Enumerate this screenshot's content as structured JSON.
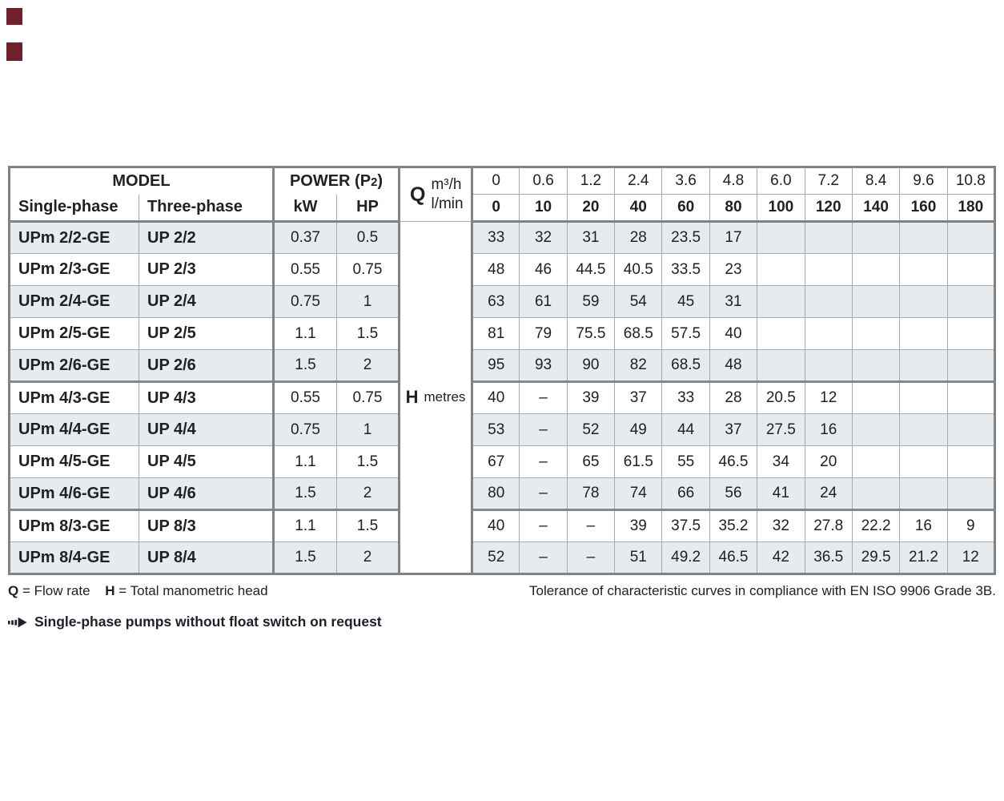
{
  "page": {
    "edge_tab_color": "#701f2b",
    "shade_color": "#e7ebed"
  },
  "table": {
    "header": {
      "model_label": "MODEL",
      "single_phase_label": "Single-phase",
      "three_phase_label": "Three-phase",
      "power_prefix": "POWER (P",
      "power_sub": "2",
      "power_suffix": ")",
      "kw_label": "kW",
      "hp_label": "HP",
      "q_label": "Q",
      "m3h_label": "m³/h",
      "lmin_label": "l/min",
      "m3h_values": [
        "0",
        "0.6",
        "1.2",
        "2.4",
        "3.6",
        "4.8",
        "6.0",
        "7.2",
        "8.4",
        "9.6",
        "10.8"
      ],
      "lmin_values": [
        "0",
        "10",
        "20",
        "40",
        "60",
        "80",
        "100",
        "120",
        "140",
        "160",
        "180"
      ]
    },
    "h_label": "H",
    "h_unit": "metres",
    "group_starts": [
      5,
      9
    ],
    "rows": [
      {
        "single": "UPm 2/2-GE",
        "three": "UP 2/2",
        "kw": "0.37",
        "hp": "0.5",
        "values": [
          "33",
          "32",
          "31",
          "28",
          "23.5",
          "17",
          "",
          "",
          "",
          "",
          ""
        ]
      },
      {
        "single": "UPm 2/3-GE",
        "three": "UP 2/3",
        "kw": "0.55",
        "hp": "0.75",
        "values": [
          "48",
          "46",
          "44.5",
          "40.5",
          "33.5",
          "23",
          "",
          "",
          "",
          "",
          ""
        ]
      },
      {
        "single": "UPm 2/4-GE",
        "three": "UP 2/4",
        "kw": "0.75",
        "hp": "1",
        "values": [
          "63",
          "61",
          "59",
          "54",
          "45",
          "31",
          "",
          "",
          "",
          "",
          ""
        ]
      },
      {
        "single": "UPm 2/5-GE",
        "three": "UP 2/5",
        "kw": "1.1",
        "hp": "1.5",
        "values": [
          "81",
          "79",
          "75.5",
          "68.5",
          "57.5",
          "40",
          "",
          "",
          "",
          "",
          ""
        ]
      },
      {
        "single": "UPm 2/6-GE",
        "three": "UP 2/6",
        "kw": "1.5",
        "hp": "2",
        "values": [
          "95",
          "93",
          "90",
          "82",
          "68.5",
          "48",
          "",
          "",
          "",
          "",
          ""
        ]
      },
      {
        "single": "UPm 4/3-GE",
        "three": "UP 4/3",
        "kw": "0.55",
        "hp": "0.75",
        "values": [
          "40",
          "–",
          "39",
          "37",
          "33",
          "28",
          "20.5",
          "12",
          "",
          "",
          ""
        ]
      },
      {
        "single": "UPm 4/4-GE",
        "three": "UP 4/4",
        "kw": "0.75",
        "hp": "1",
        "values": [
          "53",
          "–",
          "52",
          "49",
          "44",
          "37",
          "27.5",
          "16",
          "",
          "",
          ""
        ]
      },
      {
        "single": "UPm 4/5-GE",
        "three": "UP 4/5",
        "kw": "1.1",
        "hp": "1.5",
        "values": [
          "67",
          "–",
          "65",
          "61.5",
          "55",
          "46.5",
          "34",
          "20",
          "",
          "",
          ""
        ]
      },
      {
        "single": "UPm 4/6-GE",
        "three": "UP 4/6",
        "kw": "1.5",
        "hp": "2",
        "values": [
          "80",
          "–",
          "78",
          "74",
          "66",
          "56",
          "41",
          "24",
          "",
          "",
          ""
        ]
      },
      {
        "single": "UPm 8/3-GE",
        "three": "UP 8/3",
        "kw": "1.1",
        "hp": "1.5",
        "values": [
          "40",
          "–",
          "–",
          "39",
          "37.5",
          "35.2",
          "32",
          "27.8",
          "22.2",
          "16",
          "9"
        ]
      },
      {
        "single": "UPm 8/4-GE",
        "three": "UP 8/4",
        "kw": "1.5",
        "hp": "2",
        "values": [
          "52",
          "–",
          "–",
          "51",
          "49.2",
          "46.5",
          "42",
          "36.5",
          "29.5",
          "21.2",
          "12"
        ]
      }
    ]
  },
  "footer": {
    "legend_q_bold": "Q",
    "legend_q_rest": " = Flow rate",
    "legend_h_bold": "H",
    "legend_h_rest": " = Total manometric head",
    "tolerance_text": "Tolerance of characteristic curves in compliance with EN ISO 9906 Grade 3B.",
    "note_text": "Single-phase pumps without float switch on request"
  }
}
